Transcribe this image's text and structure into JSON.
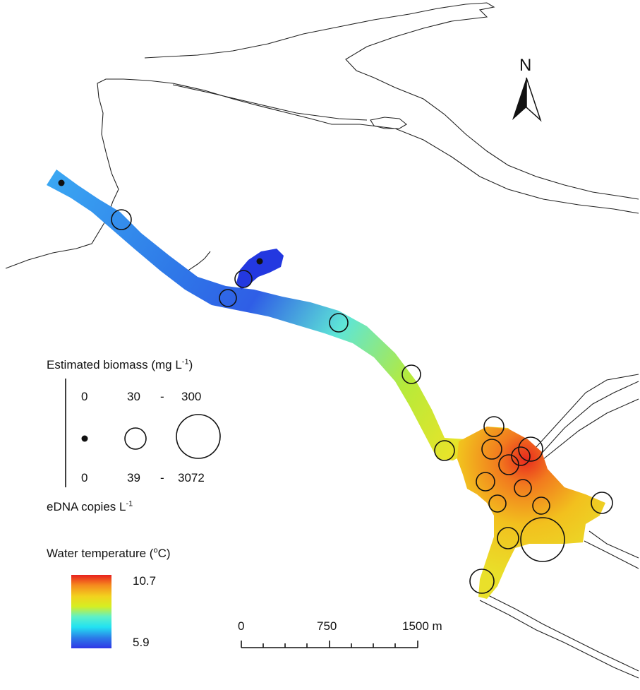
{
  "north_arrow": {
    "label": "N"
  },
  "biomass_legend": {
    "title": "Estimated biomass (mg L",
    "title_sup": "-1",
    "title_end": ")",
    "values": [
      "0",
      "30",
      "-",
      "300"
    ]
  },
  "edna_legend": {
    "values": [
      "0",
      "39",
      "-",
      "3072"
    ],
    "title": "eDNA copies L",
    "title_sup": "-1"
  },
  "temperature_legend": {
    "title_start": "Water temperature (",
    "title_sup": "o",
    "title_end": "C)",
    "max_label": "10.7",
    "min_label": "5.9",
    "max_value": 10.7,
    "min_value": 5.9,
    "colors": [
      "#e8201e",
      "#f58a1e",
      "#f2d21e",
      "#d6ee22",
      "#5ef0c8",
      "#23e2f2",
      "#2b7ae8",
      "#2f37e6"
    ]
  },
  "scale_bar": {
    "labels": [
      "0",
      "750",
      "1500 m"
    ]
  }
}
